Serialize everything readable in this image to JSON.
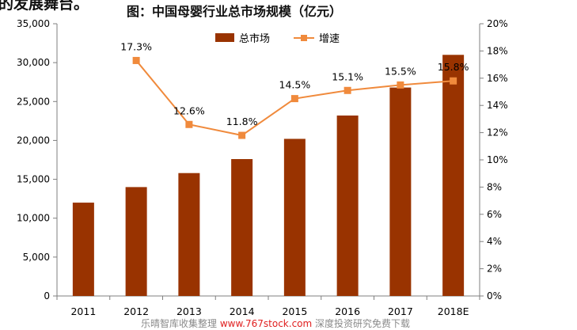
{
  "top_crop_text": "的发展舞台。",
  "watermark": {
    "left": "乐晴智库收集整理",
    "url": "www.767stock.com",
    "right": "深度投资研究免费下载"
  },
  "chart_data": {
    "type": "bar+line",
    "title": "图：中国母婴行业总市场规模（亿元）",
    "categories": [
      "2011",
      "2012",
      "2013",
      "2014",
      "2015",
      "2016",
      "2017",
      "2018E"
    ],
    "series": [
      {
        "name": "总市场",
        "type": "bar",
        "axis": "left",
        "color": "#993300",
        "values": [
          12000,
          14000,
          15800,
          17600,
          20200,
          23200,
          26800,
          31000
        ]
      },
      {
        "name": "增速",
        "type": "line",
        "axis": "right",
        "color": "#f08a3c",
        "x": [
          "2012",
          "2013",
          "2014",
          "2015",
          "2016",
          "2017",
          "2018E"
        ],
        "values": [
          17.3,
          12.6,
          11.8,
          14.5,
          15.1,
          15.5,
          15.8
        ],
        "labels": [
          "17.3%",
          "12.6%",
          "11.8%",
          "14.5%",
          "15.1%",
          "15.5%",
          "15.8%"
        ]
      }
    ],
    "y_left": {
      "ylim": [
        0,
        35000
      ],
      "ticks": [
        "0",
        "5,000",
        "10,000",
        "15,000",
        "20,000",
        "25,000",
        "30,000",
        "35,000"
      ]
    },
    "y_right": {
      "ylim": [
        0,
        20
      ],
      "ticks": [
        "0%",
        "2%",
        "4%",
        "6%",
        "8%",
        "10%",
        "12%",
        "14%",
        "16%",
        "18%",
        "20%"
      ]
    },
    "legend_position": "top-center",
    "grid": false
  }
}
